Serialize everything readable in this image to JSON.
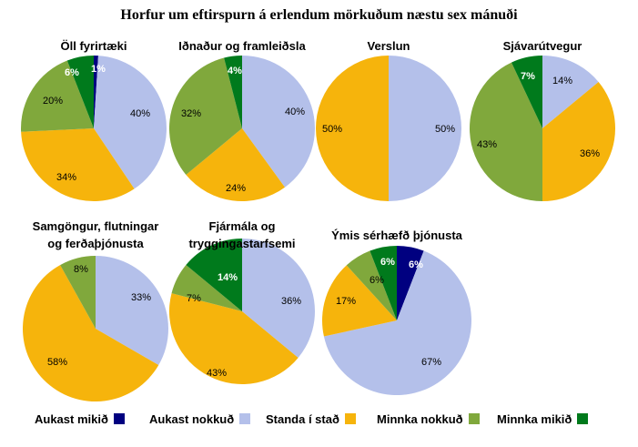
{
  "title": "Horfur um eftirspurn á erlendum mörkuðum næstu sex mánuði",
  "legend": [
    {
      "label": "Aukast mikið",
      "color": "#000080"
    },
    {
      "label": "Aukast nokkuð",
      "color": "#b4c0ea"
    },
    {
      "label": "Standa í stað",
      "color": "#f6b40c"
    },
    {
      "label": "Minnka nokkuð",
      "color": "#80a83c"
    },
    {
      "label": "Minnka mikið",
      "color": "#007a1c"
    }
  ],
  "chart_data": [
    {
      "type": "pie",
      "title": "Öll fyrirtæki",
      "categories": [
        "Aukast mikið",
        "Aukast nokkuð",
        "Standa í stað",
        "Minnka nokkuð",
        "Minnka mikið"
      ],
      "values": [
        1,
        40,
        34,
        20,
        6
      ],
      "labels": [
        "1%",
        "40%",
        "34%",
        "20%",
        "6%"
      ]
    },
    {
      "type": "pie",
      "title": "Iðnaður og framleiðsla",
      "categories": [
        "Aukast mikið",
        "Aukast nokkuð",
        "Standa í stað",
        "Minnka nokkuð",
        "Minnka mikið"
      ],
      "values": [
        0,
        40,
        24,
        32,
        4
      ],
      "labels": [
        "",
        "40%",
        "24%",
        "32%",
        "4%"
      ]
    },
    {
      "type": "pie",
      "title": "Verslun",
      "categories": [
        "Aukast mikið",
        "Aukast nokkuð",
        "Standa í stað",
        "Minnka nokkuð",
        "Minnka mikið"
      ],
      "values": [
        0,
        50,
        50,
        0,
        0
      ],
      "labels": [
        "",
        "50%",
        "50%",
        "",
        ""
      ]
    },
    {
      "type": "pie",
      "title": "Sjávarútvegur",
      "categories": [
        "Aukast mikið",
        "Aukast nokkuð",
        "Standa í stað",
        "Minnka nokkuð",
        "Minnka mikið"
      ],
      "values": [
        0,
        14,
        36,
        43,
        7
      ],
      "labels": [
        "",
        "14%",
        "36%",
        "43%",
        "7%"
      ]
    },
    {
      "type": "pie",
      "title": [
        "Samgöngur, flutningar",
        "og ferðaþjónusta"
      ],
      "categories": [
        "Aukast mikið",
        "Aukast nokkuð",
        "Standa í stað",
        "Minnka nokkuð",
        "Minnka mikið"
      ],
      "values": [
        0,
        33,
        58,
        8,
        0
      ],
      "labels": [
        "",
        "33%",
        "58%",
        "8%",
        ""
      ]
    },
    {
      "type": "pie",
      "title": [
        "Fjármála og",
        "tryggingastarfsemi"
      ],
      "categories": [
        "Aukast mikið",
        "Aukast nokkuð",
        "Standa í stað",
        "Minnka nokkuð",
        "Minnka mikið"
      ],
      "values": [
        0,
        36,
        43,
        7,
        14
      ],
      "labels": [
        "",
        "36%",
        "43%",
        "7%",
        "14%"
      ]
    },
    {
      "type": "pie",
      "title": "Ýmis sérhæfð þjónusta",
      "categories": [
        "Aukast mikið",
        "Aukast nokkuð",
        "Standa í stað",
        "Minnka nokkuð",
        "Minnka mikið"
      ],
      "values": [
        6,
        67,
        17,
        6,
        6
      ],
      "labels": [
        "6%",
        "67%",
        "17%",
        "6%",
        "6%"
      ]
    }
  ]
}
